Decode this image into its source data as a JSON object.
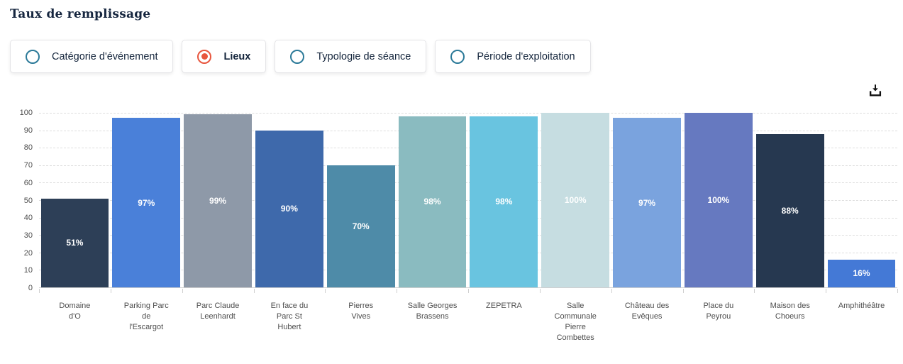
{
  "title": "Taux de remplissage",
  "filters": [
    {
      "label": "Catégorie d'événement",
      "selected": false
    },
    {
      "label": "Lieux",
      "selected": true
    },
    {
      "label": "Typologie de séance",
      "selected": false
    },
    {
      "label": "Période d'exploitation",
      "selected": false
    }
  ],
  "icons": {
    "download": "tray-arrow-down"
  },
  "colors": {
    "radio_unselected": "#2c7a99",
    "radio_selected": "#e8563e",
    "title_text": "#16263f",
    "axis_text": "#4d4d4d",
    "grid_line": "#dedede",
    "data_label_text": "#ffffff"
  },
  "chart_data": {
    "type": "bar",
    "title": "Taux de remplissage",
    "xlabel": "",
    "ylabel": "",
    "ylim": [
      0,
      100
    ],
    "yticks": [
      0,
      10,
      20,
      30,
      40,
      50,
      60,
      70,
      80,
      90,
      100
    ],
    "grid": true,
    "grid_style": "dotted",
    "legend": false,
    "categories": [
      "Domaine\nd'O",
      "Parking Parc\nde\nl'Escargot",
      "Parc Claude\nLeenhardt",
      "En face du\nParc St\nHubert",
      "Pierres\nVives",
      "Salle Georges\nBrassens",
      "ZEPETRA",
      "Salle\nCommunale\nPierre\nCombettes",
      "Château des\nEvêques",
      "Place du\nPeyrou",
      "Maison des\nChoeurs",
      "Amphithéâtre"
    ],
    "values": [
      51,
      97,
      99,
      90,
      70,
      98,
      98,
      100,
      97,
      100,
      88,
      16
    ],
    "data_labels": [
      "51%",
      "97%",
      "99%",
      "90%",
      "70%",
      "98%",
      "98%",
      "100%",
      "97%",
      "100%",
      "88%",
      "16%"
    ],
    "bar_colors": [
      "#2d3f57",
      "#4a80d9",
      "#8e99a8",
      "#3e69ab",
      "#4e8ba8",
      "#8abbc0",
      "#69c4e0",
      "#c6dde1",
      "#7aa3de",
      "#6679c0",
      "#263850",
      "#4479d6"
    ]
  }
}
